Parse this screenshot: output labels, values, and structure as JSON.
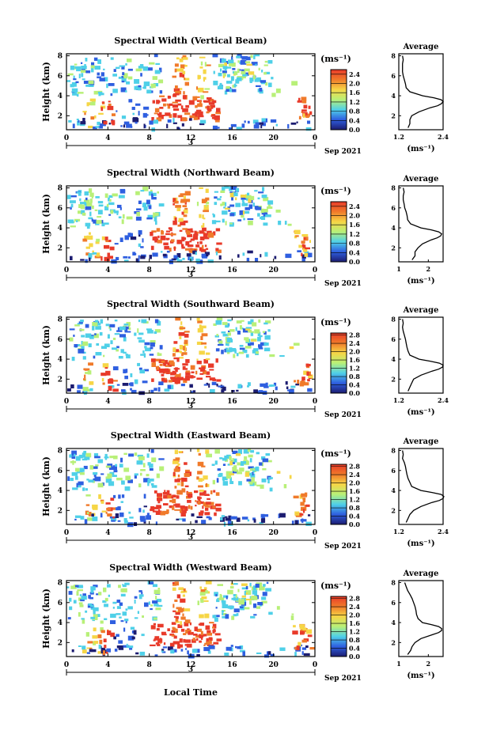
{
  "figure": {
    "xlabel_bottom": "Local Time",
    "date_label": "Sep 2021",
    "day_marker": "3",
    "ylabel": "Height (km)",
    "colorbar_unit": "(ms⁻¹)",
    "avg_title": "Average",
    "avg_xlabel": "(ms⁻¹)",
    "colors": {
      "low": "#1c1c70",
      "blue": "#2f5fe0",
      "cyan": "#4fd0e8",
      "green": "#b8f078",
      "yellow": "#f6d646",
      "orange": "#f07a2a",
      "red": "#e83a2a",
      "line": "#000000"
    }
  },
  "chart_data": [
    {
      "type": "heatmap",
      "title": "Spectral Width (Vertical Beam)",
      "xlabel": "Local Time",
      "ylabel": "Height (km)",
      "x_ticks": [
        "0",
        "4",
        "8",
        "12",
        "16",
        "20",
        "0"
      ],
      "xlim": [
        0,
        24
      ],
      "y_ticks": [
        "2",
        "4",
        "6",
        "8"
      ],
      "ylim": [
        0.6,
        8.2
      ],
      "colorbar": {
        "unit": "(ms⁻¹)",
        "ticks": [
          "0.0",
          "0.4",
          "0.8",
          "1.2",
          "1.6",
          "2.0",
          "2.4"
        ],
        "range": [
          0,
          2.6
        ]
      },
      "average_profile": {
        "title": "Average",
        "xlabel": "(ms⁻¹)",
        "x_ticks": [
          "1.2",
          "2.4"
        ],
        "x_tick_values": [
          1.2,
          2.4
        ],
        "xlim": [
          1.2,
          2.4
        ],
        "y_ticks": [
          "2",
          "4",
          "6",
          "8"
        ],
        "ylim": [
          0.6,
          8.2
        ],
        "heights": [
          0.8,
          1.2,
          1.6,
          2.0,
          2.4,
          2.8,
          3.0,
          3.2,
          3.4,
          3.6,
          3.8,
          4.0,
          4.4,
          4.8,
          5.2,
          5.6,
          6.0,
          6.4,
          6.8,
          7.2,
          7.6,
          8.0
        ],
        "values": [
          1.45,
          1.5,
          1.5,
          1.55,
          1.75,
          2.05,
          2.25,
          2.35,
          2.4,
          2.35,
          2.15,
          1.85,
          1.5,
          1.4,
          1.38,
          1.35,
          1.32,
          1.3,
          1.3,
          1.3,
          1.32,
          1.3
        ]
      }
    },
    {
      "type": "heatmap",
      "title": "Spectral Width (Northward Beam)",
      "xlabel": "Local Time",
      "ylabel": "Height (km)",
      "x_ticks": [
        "0",
        "4",
        "8",
        "12",
        "16",
        "20",
        "0"
      ],
      "xlim": [
        0,
        24
      ],
      "y_ticks": [
        "2",
        "4",
        "6",
        "8"
      ],
      "ylim": [
        0.6,
        8.2
      ],
      "colorbar": {
        "unit": "(ms⁻¹)",
        "ticks": [
          "0.0",
          "0.4",
          "0.8",
          "1.2",
          "1.6",
          "2.0",
          "2.4"
        ],
        "range": [
          0,
          2.6
        ]
      },
      "average_profile": {
        "title": "Average",
        "xlabel": "(ms⁻¹)",
        "x_ticks": [
          "1",
          "2"
        ],
        "x_tick_values": [
          1,
          2
        ],
        "xlim": [
          1.0,
          2.5
        ],
        "y_ticks": [
          "2",
          "4",
          "6",
          "8"
        ],
        "ylim": [
          0.6,
          8.2
        ],
        "heights": [
          0.8,
          1.2,
          1.6,
          2.0,
          2.4,
          2.8,
          3.0,
          3.2,
          3.4,
          3.6,
          3.8,
          4.0,
          4.4,
          4.8,
          5.2,
          5.6,
          6.0,
          6.4,
          6.8,
          7.2,
          7.6,
          8.0
        ],
        "values": [
          1.45,
          1.55,
          1.55,
          1.65,
          1.8,
          2.1,
          2.3,
          2.42,
          2.45,
          2.35,
          2.1,
          1.75,
          1.4,
          1.3,
          1.28,
          1.25,
          1.2,
          1.18,
          1.15,
          1.15,
          1.18,
          1.15
        ]
      }
    },
    {
      "type": "heatmap",
      "title": "Spectral Width (Southward Beam)",
      "xlabel": "Local Time",
      "ylabel": "Height (km)",
      "x_ticks": [
        "0",
        "4",
        "8",
        "12",
        "16",
        "20",
        "0"
      ],
      "xlim": [
        0,
        24
      ],
      "y_ticks": [
        "2",
        "4",
        "6",
        "8"
      ],
      "ylim": [
        0.6,
        8.2
      ],
      "colorbar": {
        "unit": "(ms⁻¹)",
        "ticks": [
          "0.0",
          "0.4",
          "0.8",
          "1.2",
          "1.6",
          "2.0",
          "2.4",
          "2.8"
        ],
        "range": [
          0,
          2.9
        ]
      },
      "average_profile": {
        "title": "Average",
        "xlabel": "(ms⁻¹)",
        "x_ticks": [
          "1.2",
          "2.4"
        ],
        "x_tick_values": [
          1.2,
          2.4
        ],
        "xlim": [
          1.2,
          2.4
        ],
        "y_ticks": [
          "2",
          "4",
          "6",
          "8"
        ],
        "ylim": [
          0.6,
          8.2
        ],
        "heights": [
          0.8,
          1.2,
          1.6,
          2.0,
          2.4,
          2.8,
          3.0,
          3.2,
          3.4,
          3.6,
          3.8,
          4.0,
          4.4,
          4.8,
          5.2,
          5.6,
          6.0,
          6.4,
          6.8,
          7.2,
          7.6,
          8.0
        ],
        "values": [
          1.45,
          1.5,
          1.55,
          1.6,
          1.8,
          2.1,
          2.28,
          2.38,
          2.4,
          2.3,
          2.05,
          1.75,
          1.5,
          1.45,
          1.42,
          1.4,
          1.38,
          1.35,
          1.32,
          1.3,
          1.32,
          1.3
        ]
      }
    },
    {
      "type": "heatmap",
      "title": "Spectral Width (Eastward Beam)",
      "xlabel": "Local Time",
      "ylabel": "Height (km)",
      "x_ticks": [
        "0",
        "4",
        "8",
        "12",
        "16",
        "20",
        "0"
      ],
      "xlim": [
        0,
        24
      ],
      "y_ticks": [
        "2",
        "4",
        "6",
        "8"
      ],
      "ylim": [
        0.6,
        8.2
      ],
      "colorbar": {
        "unit": "(ms⁻¹)",
        "ticks": [
          "0.0",
          "0.4",
          "0.8",
          "1.2",
          "1.6",
          "2.0",
          "2.4",
          "2.8"
        ],
        "range": [
          0,
          2.9
        ]
      },
      "average_profile": {
        "title": "Average",
        "xlabel": "(ms⁻¹)",
        "x_ticks": [
          "1.2",
          "2.4"
        ],
        "x_tick_values": [
          1.2,
          2.4
        ],
        "xlim": [
          1.2,
          2.4
        ],
        "y_ticks": [
          "2",
          "4",
          "6",
          "8"
        ],
        "ylim": [
          0.6,
          8.2
        ],
        "heights": [
          0.8,
          1.2,
          1.6,
          2.0,
          2.4,
          2.8,
          3.0,
          3.2,
          3.4,
          3.6,
          3.8,
          4.0,
          4.4,
          4.8,
          5.2,
          5.6,
          6.0,
          6.4,
          6.8,
          7.2,
          7.6,
          8.0
        ],
        "values": [
          1.4,
          1.45,
          1.5,
          1.6,
          1.8,
          2.1,
          2.3,
          2.4,
          2.42,
          2.35,
          2.1,
          1.8,
          1.55,
          1.5,
          1.45,
          1.42,
          1.4,
          1.38,
          1.35,
          1.3,
          1.32,
          1.3
        ]
      }
    },
    {
      "type": "heatmap",
      "title": "Spectral Width (Westward Beam)",
      "xlabel": "Local Time",
      "ylabel": "Height (km)",
      "x_ticks": [
        "0",
        "4",
        "8",
        "12",
        "16",
        "20",
        "0"
      ],
      "xlim": [
        0,
        24
      ],
      "y_ticks": [
        "2",
        "4",
        "6",
        "8"
      ],
      "ylim": [
        0.6,
        8.2
      ],
      "colorbar": {
        "unit": "(ms⁻¹)",
        "ticks": [
          "0.0",
          "0.4",
          "0.8",
          "1.2",
          "1.6",
          "2.0",
          "2.4",
          "2.8"
        ],
        "range": [
          0,
          2.9
        ]
      },
      "average_profile": {
        "title": "Average",
        "xlabel": "(ms⁻¹)",
        "x_ticks": [
          "1",
          "2"
        ],
        "x_tick_values": [
          1,
          2
        ],
        "xlim": [
          1.0,
          2.5
        ],
        "y_ticks": [
          "2",
          "4",
          "6",
          "8"
        ],
        "ylim": [
          0.6,
          8.2
        ],
        "heights": [
          0.8,
          1.2,
          1.6,
          2.0,
          2.4,
          2.8,
          3.0,
          3.2,
          3.4,
          3.6,
          3.8,
          4.0,
          4.4,
          4.8,
          5.2,
          5.6,
          6.0,
          6.4,
          6.8,
          7.2,
          7.6,
          8.0
        ],
        "values": [
          1.3,
          1.4,
          1.45,
          1.55,
          1.75,
          2.15,
          2.35,
          2.45,
          2.45,
          2.35,
          2.1,
          1.8,
          1.65,
          1.6,
          1.58,
          1.55,
          1.5,
          1.45,
          1.38,
          1.3,
          1.25,
          1.2
        ]
      }
    }
  ]
}
